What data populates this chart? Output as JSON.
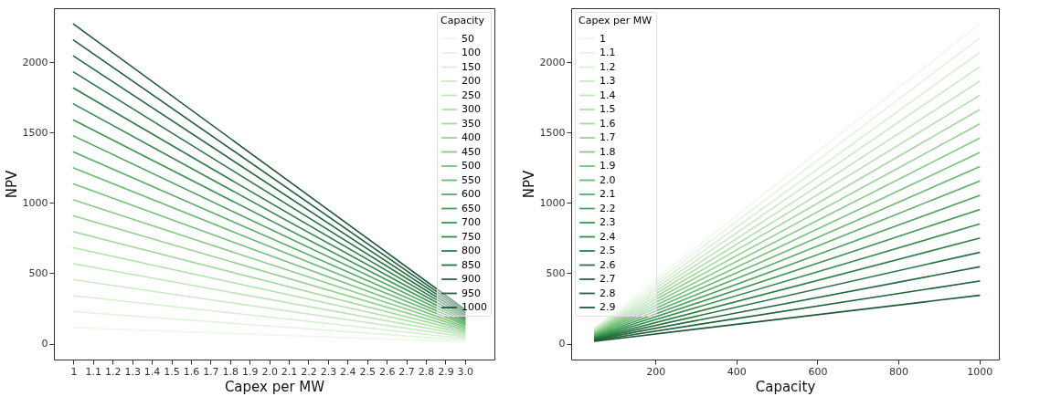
{
  "chart_data": [
    {
      "type": "line",
      "xlabel": "Capex per MW",
      "ylabel": "NPV",
      "legend_title": "Capacity",
      "legend": "top right",
      "xlim": [
        0.9,
        3.15
      ],
      "xticks": [
        1,
        1.1,
        1.2,
        1.3,
        1.4,
        1.5,
        1.6,
        1.7,
        1.8,
        1.9,
        {
          "value": 2,
          "label": "2.0"
        },
        2.1,
        2.2,
        2.3,
        2.4,
        2.5,
        2.6,
        2.7,
        2.8,
        2.9,
        {
          "value": 3,
          "label": "3.0"
        }
      ],
      "ylim": [
        -113,
        2383
      ],
      "yticks": [
        0,
        500,
        1000,
        1500,
        2000
      ],
      "x": [
        1,
        3
      ],
      "series": [
        {
          "name": "50",
          "color": "#eef8eb",
          "values": [
            114,
            12
          ]
        },
        {
          "name": "100",
          "color": "#e3f4df",
          "values": [
            227,
            24
          ]
        },
        {
          "name": "150",
          "color": "#d7efd2",
          "values": [
            341,
            36
          ]
        },
        {
          "name": "200",
          "color": "#cbeac5",
          "values": [
            454,
            48
          ]
        },
        {
          "name": "250",
          "color": "#bfe5b8",
          "values": [
            568,
            61
          ]
        },
        {
          "name": "300",
          "color": "#b1dfab",
          "values": [
            681,
            73
          ]
        },
        {
          "name": "350",
          "color": "#a3d99e",
          "values": [
            795,
            85
          ]
        },
        {
          "name": "400",
          "color": "#95d291",
          "values": [
            908,
            97
          ]
        },
        {
          "name": "450",
          "color": "#85ca85",
          "values": [
            1022,
            109
          ]
        },
        {
          "name": "500",
          "color": "#76c27a",
          "values": [
            1135,
            121
          ]
        },
        {
          "name": "550",
          "color": "#67b86f",
          "values": [
            1249,
            133
          ]
        },
        {
          "name": "600",
          "color": "#58ad66",
          "values": [
            1362,
            145
          ]
        },
        {
          "name": "650",
          "color": "#4aa25d",
          "values": [
            1476,
            157
          ]
        },
        {
          "name": "700",
          "color": "#3d9655",
          "values": [
            1589,
            169
          ]
        },
        {
          "name": "750",
          "color": "#338b4d",
          "values": [
            1703,
            182
          ]
        },
        {
          "name": "800",
          "color": "#2d7f47",
          "values": [
            1816,
            194
          ]
        },
        {
          "name": "850",
          "color": "#287342",
          "values": [
            1930,
            206
          ]
        },
        {
          "name": "900",
          "color": "#24683e",
          "values": [
            2043,
            218
          ]
        },
        {
          "name": "950",
          "color": "#20603a",
          "values": [
            2157,
            230
          ]
        },
        {
          "name": "1000",
          "color": "#1e5836",
          "values": [
            2270,
            242
          ]
        }
      ]
    },
    {
      "type": "line",
      "xlabel": "Capacity",
      "ylabel": "NPV",
      "legend_title": "Capex per MW",
      "legend": "top left",
      "xlim": [
        -8,
        1048
      ],
      "xticks": [
        200,
        400,
        600,
        800,
        1000
      ],
      "ylim": [
        -113,
        2383
      ],
      "yticks": [
        0,
        500,
        1000,
        1500,
        2000
      ],
      "x": [
        50,
        1000
      ],
      "series": [
        {
          "name": "1",
          "color": "#eef8eb",
          "values": [
            114,
            2270
          ]
        },
        {
          "name": "1.1",
          "color": "#e3f4df",
          "values": [
            108,
            2169
          ]
        },
        {
          "name": "1.2",
          "color": "#d7efd2",
          "values": [
            103,
            2067
          ]
        },
        {
          "name": "1.3",
          "color": "#cbeac5",
          "values": [
            98,
            1966
          ]
        },
        {
          "name": "1.4",
          "color": "#bfe5b8",
          "values": [
            93,
            1864
          ]
        },
        {
          "name": "1.5",
          "color": "#b1dfab",
          "values": [
            88,
            1763
          ]
        },
        {
          "name": "1.6",
          "color": "#a3d99e",
          "values": [
            83,
            1662
          ]
        },
        {
          "name": "1.7",
          "color": "#95d291",
          "values": [
            78,
            1560
          ]
        },
        {
          "name": "1.8",
          "color": "#85ca85",
          "values": [
            73,
            1459
          ]
        },
        {
          "name": "1.9",
          "color": "#76c27a",
          "values": [
            68,
            1357
          ]
        },
        {
          "name": "2.0",
          "color": "#67b86f",
          "values": [
            63,
            1256
          ]
        },
        {
          "name": "2.1",
          "color": "#58ad66",
          "values": [
            58,
            1155
          ]
        },
        {
          "name": "2.2",
          "color": "#4aa25d",
          "values": [
            53,
            1053
          ]
        },
        {
          "name": "2.3",
          "color": "#3d9655",
          "values": [
            48,
            952
          ]
        },
        {
          "name": "2.4",
          "color": "#338b4d",
          "values": [
            43,
            850
          ]
        },
        {
          "name": "2.5",
          "color": "#2d7f47",
          "values": [
            37,
            749
          ]
        },
        {
          "name": "2.6",
          "color": "#287342",
          "values": [
            32,
            648
          ]
        },
        {
          "name": "2.7",
          "color": "#24683e",
          "values": [
            27,
            546
          ]
        },
        {
          "name": "2.8",
          "color": "#20603a",
          "values": [
            22,
            445
          ]
        },
        {
          "name": "2.9",
          "color": "#1e5836",
          "values": [
            17,
            343
          ]
        }
      ]
    }
  ]
}
